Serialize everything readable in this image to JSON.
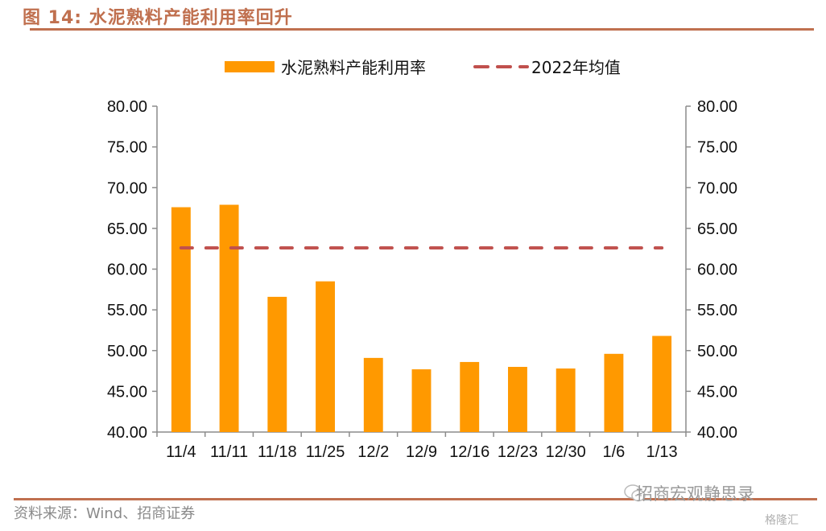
{
  "figure": {
    "title": "图 14:  水泥熟料产能利用率回升",
    "source": "资料来源：Wind、招商证券",
    "watermark": "招商宏观静思录",
    "watermark_badge": "格隆汇",
    "accent_color": "#c0704f"
  },
  "chart_data": {
    "type": "bar",
    "title": "",
    "categories": [
      "11/4",
      "11/11",
      "11/18",
      "11/25",
      "12/2",
      "12/9",
      "12/16",
      "12/23",
      "12/30",
      "1/6",
      "1/13"
    ],
    "series": [
      {
        "name": "水泥熟料产能利用率",
        "type": "bar",
        "color": "#ff9900",
        "values": [
          67.6,
          67.9,
          56.6,
          58.5,
          49.1,
          47.7,
          48.6,
          48.0,
          47.8,
          49.6,
          51.8
        ]
      },
      {
        "name": "2022年均值",
        "type": "line",
        "style": "dashed",
        "color": "#c0504d",
        "values": [
          62.6,
          62.6,
          62.6,
          62.6,
          62.6,
          62.6,
          62.6,
          62.6,
          62.6,
          62.6,
          62.6
        ]
      }
    ],
    "ylim": [
      40,
      80
    ],
    "y2lim": [
      40,
      80
    ],
    "yticks": [
      "40.00",
      "45.00",
      "50.00",
      "55.00",
      "60.00",
      "65.00",
      "70.00",
      "75.00",
      "80.00"
    ],
    "xlabel": "",
    "ylabel": "",
    "grid": false,
    "legend_position": "top-center"
  }
}
